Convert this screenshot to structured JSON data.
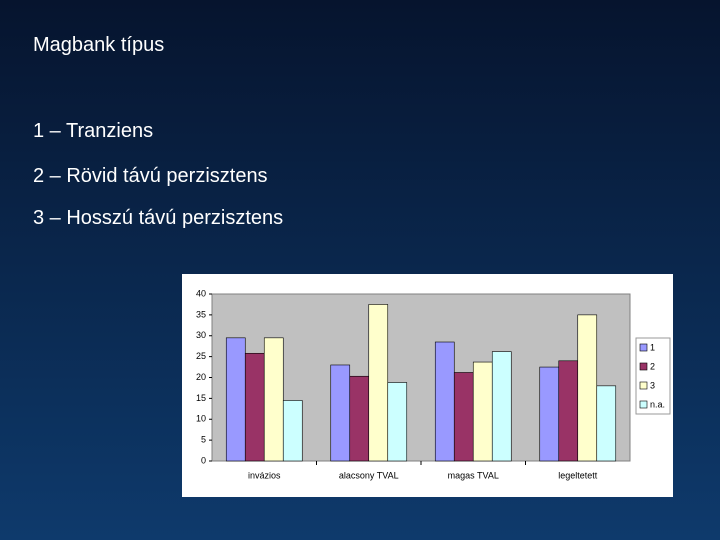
{
  "slide": {
    "title": "Magbank típus",
    "items": [
      "1 – Tranziens",
      "2 – Rövid távú perzisztens",
      "3 – Hosszú távú perzisztens"
    ]
  },
  "chart_data": {
    "type": "bar",
    "categories": [
      "invázios",
      "alacsony TVAL",
      "magas TVAL",
      "legeltetett"
    ],
    "series": [
      {
        "name": "1",
        "color": "#9999ff",
        "values": [
          29.5,
          23,
          28.5,
          22.5
        ]
      },
      {
        "name": "2",
        "color": "#993366",
        "values": [
          25.8,
          20.3,
          21.2,
          24
        ]
      },
      {
        "name": "3",
        "color": "#ffffcc",
        "values": [
          29.5,
          37.5,
          23.7,
          35
        ]
      },
      {
        "name": "n.a.",
        "color": "#ccffff",
        "values": [
          14.5,
          18.8,
          26.2,
          18
        ]
      }
    ],
    "ylim": [
      0,
      40
    ],
    "yticks": [
      0,
      5,
      10,
      15,
      20,
      25,
      30,
      35,
      40
    ],
    "grid": false,
    "legend": "right"
  }
}
